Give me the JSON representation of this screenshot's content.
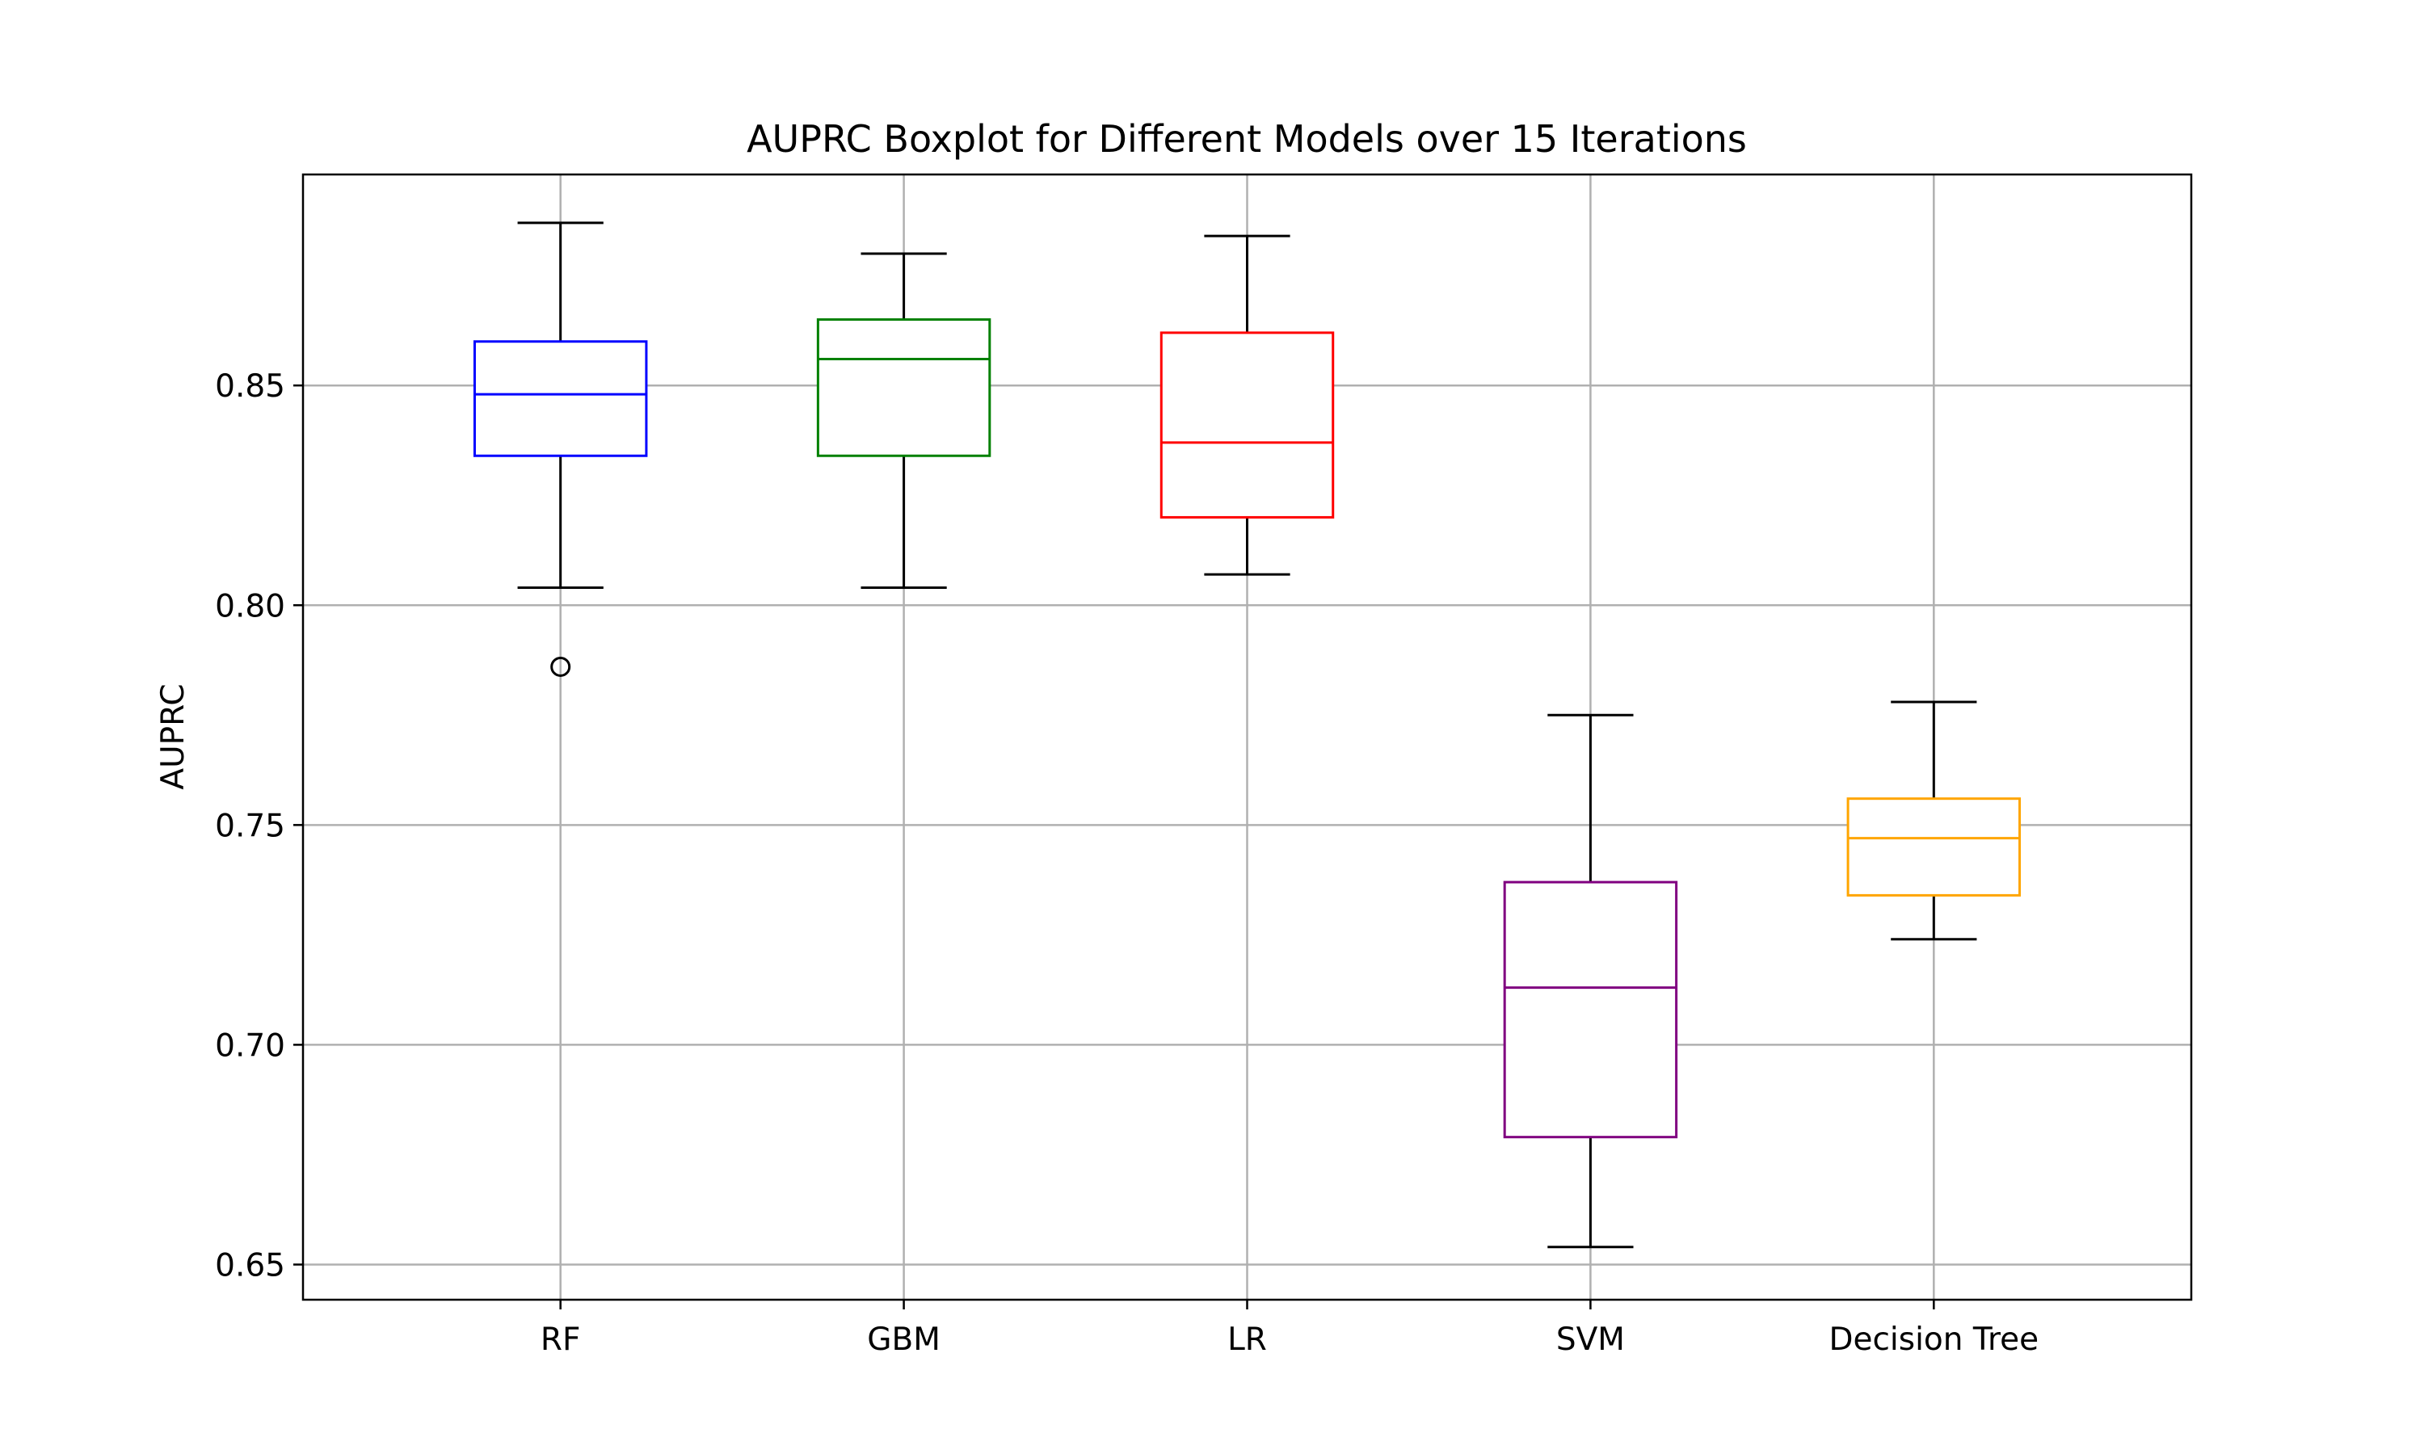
{
  "chart_data": {
    "type": "box",
    "title": "AUPRC Boxplot for Different Models over 15 Iterations",
    "xlabel": "",
    "ylabel": "AUPRC",
    "ylim": [
      0.642,
      0.898
    ],
    "yticks": [
      0.65,
      0.7,
      0.75,
      0.8,
      0.85
    ],
    "ytick_labels": [
      "0.65",
      "0.70",
      "0.75",
      "0.80",
      "0.85"
    ],
    "grid": true,
    "categories": [
      "RF",
      "GBM",
      "LR",
      "SVM",
      "Decision Tree"
    ],
    "boxes": [
      {
        "category": "RF",
        "color": "#0000ff",
        "whisker_low": 0.804,
        "q1": 0.834,
        "median": 0.848,
        "q3": 0.86,
        "whisker_high": 0.887,
        "outliers": [
          0.786
        ]
      },
      {
        "category": "GBM",
        "color": "#008000",
        "whisker_low": 0.804,
        "q1": 0.834,
        "median": 0.856,
        "q3": 0.865,
        "whisker_high": 0.88,
        "outliers": []
      },
      {
        "category": "LR",
        "color": "#ff0000",
        "whisker_low": 0.807,
        "q1": 0.82,
        "median": 0.837,
        "q3": 0.862,
        "whisker_high": 0.884,
        "outliers": []
      },
      {
        "category": "SVM",
        "color": "#800080",
        "whisker_low": 0.654,
        "q1": 0.679,
        "median": 0.713,
        "q3": 0.737,
        "whisker_high": 0.775,
        "outliers": []
      },
      {
        "category": "Decision Tree",
        "color": "#ffa500",
        "whisker_low": 0.724,
        "q1": 0.734,
        "median": 0.747,
        "q3": 0.756,
        "whisker_high": 0.778,
        "outliers": []
      }
    ],
    "whisker_color": "#000000",
    "grid_color": "#b0b0b0"
  }
}
